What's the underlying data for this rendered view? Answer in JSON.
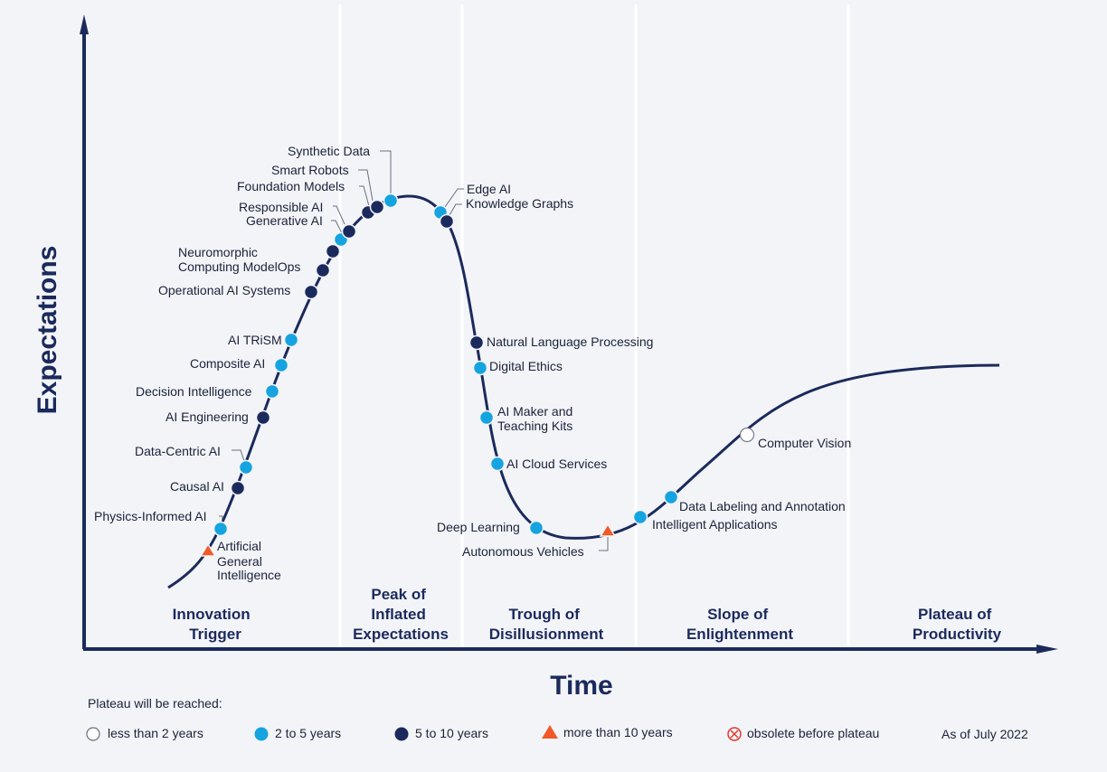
{
  "axes": {
    "x_title": "Time",
    "y_title": "Expectations"
  },
  "phases": [
    {
      "lines": [
        "Innovation",
        "Trigger"
      ]
    },
    {
      "lines": [
        "Peak of",
        "Inflated",
        "Expectations"
      ]
    },
    {
      "lines": [
        "Trough of",
        "Disillusionment"
      ]
    },
    {
      "lines": [
        "Slope of",
        "Enlightenment"
      ]
    },
    {
      "lines": [
        "Plateau of",
        "Productivity"
      ]
    }
  ],
  "colors": {
    "curve": "#1b2a5c",
    "less_than_2": "#ffffff",
    "two_to_five": "#15a4e0",
    "five_to_ten": "#1b2a5c",
    "more_than_10": "#f05a28",
    "obsolete": "#e03a2f"
  },
  "technologies": [
    {
      "id": "agi",
      "label_lines": [
        "Artificial",
        "General",
        "Intelligence"
      ],
      "category": "more_than_10"
    },
    {
      "id": "physics",
      "label_lines": [
        "Physics-Informed AI"
      ],
      "category": "two_to_five"
    },
    {
      "id": "causal",
      "label_lines": [
        "Causal AI"
      ],
      "category": "five_to_ten"
    },
    {
      "id": "datacentric",
      "label_lines": [
        "Data-Centric AI"
      ],
      "category": "two_to_five"
    },
    {
      "id": "aieng",
      "label_lines": [
        "AI Engineering"
      ],
      "category": "five_to_ten"
    },
    {
      "id": "decision",
      "label_lines": [
        "Decision Intelligence"
      ],
      "category": "two_to_five"
    },
    {
      "id": "composite",
      "label_lines": [
        "Composite AI"
      ],
      "category": "two_to_five"
    },
    {
      "id": "trism",
      "label_lines": [
        "AI TRiSM"
      ],
      "category": "two_to_five"
    },
    {
      "id": "opai",
      "label_lines": [
        "Operational AI Systems"
      ],
      "category": "five_to_ten"
    },
    {
      "id": "modelops",
      "label_lines": [
        "Neuromorphic",
        "Computing ModelOps"
      ],
      "category": "five_to_ten"
    },
    {
      "id": "neuro",
      "label_lines": [],
      "category": "five_to_ten"
    },
    {
      "id": "genai",
      "label_lines": [
        "Generative AI"
      ],
      "category": "two_to_five"
    },
    {
      "id": "respai",
      "label_lines": [
        "Responsible AI"
      ],
      "category": "five_to_ten"
    },
    {
      "id": "foundation",
      "label_lines": [
        "Foundation Models"
      ],
      "category": "five_to_ten"
    },
    {
      "id": "robots",
      "label_lines": [
        "Smart Robots"
      ],
      "category": "five_to_ten"
    },
    {
      "id": "synthetic",
      "label_lines": [
        "Synthetic Data"
      ],
      "category": "two_to_five"
    },
    {
      "id": "edge",
      "label_lines": [
        "Edge AI"
      ],
      "category": "two_to_five"
    },
    {
      "id": "kg",
      "label_lines": [
        "Knowledge Graphs"
      ],
      "category": "five_to_ten"
    },
    {
      "id": "nlp",
      "label_lines": [
        "Natural Language Processing"
      ],
      "category": "five_to_ten"
    },
    {
      "id": "ethics",
      "label_lines": [
        "Digital Ethics"
      ],
      "category": "two_to_five"
    },
    {
      "id": "maker",
      "label_lines": [
        "AI Maker and",
        "Teaching Kits"
      ],
      "category": "two_to_five"
    },
    {
      "id": "cloud",
      "label_lines": [
        "AI Cloud Services"
      ],
      "category": "two_to_five"
    },
    {
      "id": "deep",
      "label_lines": [
        "Deep Learning"
      ],
      "category": "two_to_five"
    },
    {
      "id": "auto",
      "label_lines": [
        "Autonomous Vehicles"
      ],
      "category": "more_than_10"
    },
    {
      "id": "intapps",
      "label_lines": [
        "Intelligent Applications"
      ],
      "category": "two_to_five"
    },
    {
      "id": "labeling",
      "label_lines": [
        "Data Labeling and Annotation"
      ],
      "category": "two_to_five"
    },
    {
      "id": "cv",
      "label_lines": [
        "Computer Vision"
      ],
      "category": "less_than_2"
    }
  ],
  "legend": {
    "title": "Plateau will be reached:",
    "items": [
      {
        "category": "less_than_2",
        "label": "less than 2 years"
      },
      {
        "category": "two_to_five",
        "label": "2 to 5 years"
      },
      {
        "category": "five_to_ten",
        "label": "5 to 10 years"
      },
      {
        "category": "more_than_10",
        "label": "more than 10 years"
      },
      {
        "category": "obsolete",
        "label": "obsolete before plateau"
      }
    ],
    "as_of": "As of July 2022"
  }
}
